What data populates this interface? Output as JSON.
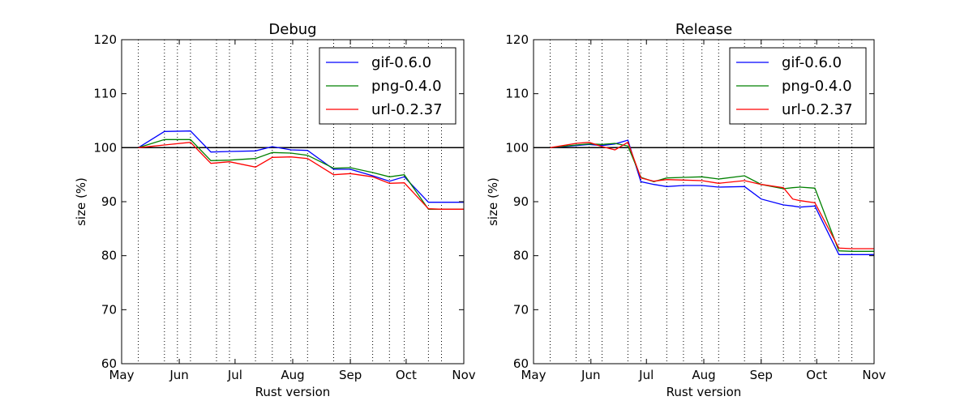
{
  "chart_data": [
    {
      "type": "line",
      "title": "Debug",
      "xlabel": "Rust version",
      "ylabel": "size (%)",
      "ylim": [
        60,
        120
      ],
      "yticks": [
        60,
        70,
        80,
        90,
        100,
        110,
        120
      ],
      "xlim": [
        "2015-05-01",
        "2015-11-01"
      ],
      "month_ticks": [
        "May",
        "Jun",
        "Jul",
        "Aug",
        "Sep",
        "Oct",
        "Nov"
      ],
      "grid": "vertical dotted lines at release dates",
      "reference_line": 100,
      "legend_position": "top-right",
      "release_dates": [
        "2015-05-10",
        "2015-05-24",
        "2015-05-31",
        "2015-06-07",
        "2015-06-21",
        "2015-06-28",
        "2015-07-12",
        "2015-07-21",
        "2015-07-31",
        "2015-08-09",
        "2015-08-23",
        "2015-09-01",
        "2015-09-13",
        "2015-09-22",
        "2015-09-30",
        "2015-10-13",
        "2015-10-20"
      ],
      "x": [
        "2015-05-10",
        "2015-05-24",
        "2015-06-07",
        "2015-06-18",
        "2015-06-28",
        "2015-07-12",
        "2015-07-21",
        "2015-07-31",
        "2015-08-09",
        "2015-08-23",
        "2015-09-01",
        "2015-09-13",
        "2015-09-22",
        "2015-09-30",
        "2015-10-13",
        "2015-10-20",
        "2015-11-01"
      ],
      "series": [
        {
          "name": "gif-0.6.0",
          "color": "#0000ff",
          "values": [
            100.0,
            103.0,
            103.1,
            99.2,
            99.3,
            99.4,
            100.2,
            99.6,
            99.5,
            96.0,
            96.0,
            94.8,
            93.8,
            94.6,
            89.9,
            89.9,
            89.9
          ]
        },
        {
          "name": "png-0.4.0",
          "color": "#008000",
          "values": [
            100.0,
            101.5,
            101.5,
            97.6,
            97.7,
            98.0,
            99.1,
            99.0,
            98.6,
            96.2,
            96.3,
            95.4,
            94.6,
            95.0,
            88.6,
            88.6,
            88.6
          ]
        },
        {
          "name": "url-0.2.37",
          "color": "#ff0000",
          "values": [
            100.0,
            100.5,
            101.0,
            97.1,
            97.4,
            96.4,
            98.2,
            98.3,
            98.0,
            95.0,
            95.2,
            94.6,
            93.4,
            93.5,
            88.7,
            88.6,
            88.6
          ]
        }
      ]
    },
    {
      "type": "line",
      "title": "Release",
      "xlabel": "Rust version",
      "ylabel": "size (%)",
      "ylim": [
        60,
        120
      ],
      "yticks": [
        60,
        70,
        80,
        90,
        100,
        110,
        120
      ],
      "xlim": [
        "2015-05-01",
        "2015-11-01"
      ],
      "month_ticks": [
        "May",
        "Jun",
        "Jul",
        "Aug",
        "Sep",
        "Oct",
        "Nov"
      ],
      "grid": "vertical dotted lines at release dates",
      "reference_line": 100,
      "legend_position": "top-right",
      "release_dates": [
        "2015-05-10",
        "2015-05-24",
        "2015-05-31",
        "2015-06-07",
        "2015-06-21",
        "2015-06-28",
        "2015-07-12",
        "2015-07-21",
        "2015-07-31",
        "2015-08-09",
        "2015-08-23",
        "2015-09-01",
        "2015-09-13",
        "2015-09-22",
        "2015-09-30",
        "2015-10-13",
        "2015-10-20"
      ],
      "x": [
        "2015-05-10",
        "2015-05-24",
        "2015-05-31",
        "2015-06-07",
        "2015-06-14",
        "2015-06-21",
        "2015-06-28",
        "2015-07-05",
        "2015-07-12",
        "2015-07-21",
        "2015-07-31",
        "2015-08-09",
        "2015-08-23",
        "2015-09-01",
        "2015-09-13",
        "2015-09-18",
        "2015-09-22",
        "2015-09-30",
        "2015-10-13",
        "2015-10-20",
        "2015-11-01"
      ],
      "series": [
        {
          "name": "gif-0.6.0",
          "color": "#0000ff",
          "values": [
            100.0,
            100.4,
            100.6,
            100.4,
            100.7,
            101.4,
            93.7,
            93.2,
            92.8,
            93.0,
            93.0,
            92.7,
            92.8,
            90.5,
            89.4,
            89.2,
            89.0,
            89.2,
            80.2,
            80.2,
            80.2
          ]
        },
        {
          "name": "png-0.4.0",
          "color": "#008000",
          "values": [
            100.0,
            100.5,
            100.7,
            100.6,
            100.8,
            100.3,
            94.5,
            93.7,
            94.4,
            94.5,
            94.6,
            94.2,
            94.8,
            93.2,
            92.4,
            92.6,
            92.7,
            92.5,
            80.9,
            80.8,
            80.8
          ]
        },
        {
          "name": "url-0.2.37",
          "color": "#ff0000",
          "values": [
            100.0,
            100.8,
            101.0,
            100.2,
            99.6,
            101.0,
            94.4,
            93.8,
            94.1,
            94.0,
            93.9,
            93.4,
            93.9,
            93.2,
            92.6,
            90.5,
            90.2,
            89.8,
            81.4,
            81.3,
            81.3
          ]
        }
      ]
    }
  ]
}
